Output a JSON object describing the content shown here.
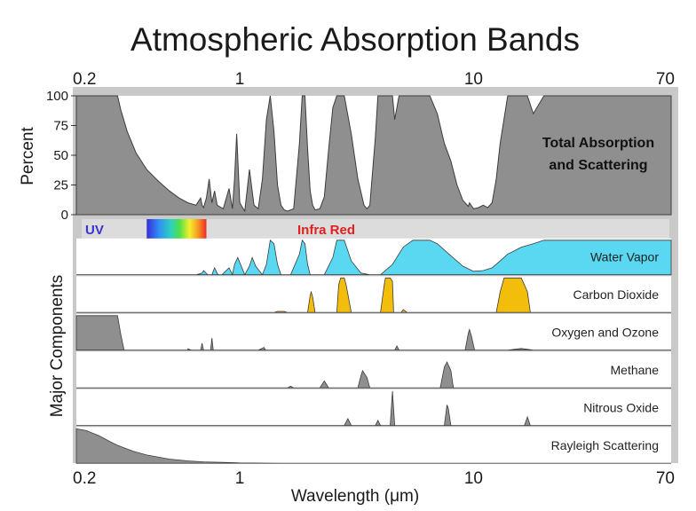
{
  "chart_data": {
    "type": "area",
    "title": "Atmospheric Absorption Bands",
    "xlabel": "Wavelength (μm)",
    "ylabel": "Percent",
    "ylabel_components": "Major Components",
    "x_scale": "log",
    "xlim": [
      0.2,
      70
    ],
    "x_ticks": [
      "0.2",
      "1",
      "10",
      "70"
    ],
    "x_tick_values": [
      0.2,
      1,
      10,
      70
    ],
    "ylim": [
      0,
      100
    ],
    "y_ticks": [
      "0",
      "25",
      "50",
      "75",
      "100"
    ],
    "y_tick_values": [
      0,
      25,
      50,
      75,
      100
    ],
    "spectrum_labels": {
      "uv": "UV",
      "ir": "Infra Red"
    },
    "colors": {
      "gray_fill": "#8f8f8f",
      "gray_stroke": "#3c3c3c",
      "water_vapor": "#5ad8f2",
      "carbon_dioxide": "#f2bd0b",
      "uv_text": "#3b33d6",
      "ir_text": "#e02020",
      "panel_background": "#ffffff"
    },
    "total": {
      "name": "Total Absorption and Scattering",
      "name_lines": [
        "Total Absorption",
        "and Scattering"
      ],
      "x": [
        0.2,
        0.3,
        0.31,
        0.33,
        0.36,
        0.4,
        0.45,
        0.5,
        0.55,
        0.6,
        0.65,
        0.68,
        0.69,
        0.7,
        0.72,
        0.74,
        0.76,
        0.78,
        0.8,
        0.85,
        0.9,
        0.93,
        0.95,
        0.97,
        1.0,
        1.05,
        1.1,
        1.15,
        1.2,
        1.25,
        1.3,
        1.35,
        1.4,
        1.45,
        1.5,
        1.55,
        1.6,
        1.7,
        1.8,
        1.85,
        1.9,
        1.95,
        2.0,
        2.05,
        2.1,
        2.2,
        2.3,
        2.4,
        2.5,
        2.6,
        2.7,
        2.8,
        3.0,
        3.2,
        3.4,
        3.5,
        3.6,
        3.8,
        3.9,
        4.0,
        4.2,
        4.3,
        4.5,
        4.6,
        4.8,
        5.0,
        5.5,
        6.0,
        6.5,
        7.0,
        7.5,
        8.0,
        8.5,
        9.0,
        9.5,
        9.6,
        10.0,
        10.5,
        11.0,
        11.5,
        12.0,
        12.5,
        13.0,
        14.0,
        15.0,
        17.0,
        18.0,
        20.0,
        22.0,
        25.0,
        30.0,
        70.0
      ],
      "y": [
        100,
        100,
        88,
        70,
        52,
        38,
        28,
        20,
        14,
        10,
        8,
        14,
        8,
        6,
        14,
        30,
        10,
        20,
        8,
        5,
        22,
        5,
        30,
        68,
        10,
        3,
        38,
        8,
        5,
        30,
        80,
        100,
        70,
        25,
        8,
        4,
        3,
        5,
        60,
        100,
        100,
        55,
        20,
        8,
        4,
        5,
        15,
        55,
        90,
        100,
        100,
        100,
        68,
        30,
        8,
        5,
        8,
        65,
        100,
        100,
        100,
        100,
        100,
        80,
        100,
        100,
        100,
        100,
        100,
        85,
        60,
        45,
        25,
        12,
        7,
        10,
        5,
        6,
        8,
        6,
        10,
        30,
        60,
        100,
        100,
        100,
        85,
        100,
        100,
        100,
        100,
        100
      ]
    },
    "components": [
      {
        "name": "Water Vapor",
        "color": "#5ad8f2",
        "x": [
          0.2,
          0.65,
          0.69,
          0.7,
          0.72,
          0.73,
          0.76,
          0.78,
          0.8,
          0.81,
          0.84,
          0.9,
          0.93,
          0.95,
          0.98,
          1.05,
          1.1,
          1.13,
          1.17,
          1.25,
          1.3,
          1.35,
          1.4,
          1.45,
          1.5,
          1.65,
          1.8,
          1.85,
          1.9,
          1.95,
          2.0,
          2.3,
          2.5,
          2.6,
          2.7,
          2.8,
          3.0,
          3.3,
          3.6,
          4.0,
          4.5,
          5.0,
          5.5,
          6.0,
          6.5,
          7.0,
          8.0,
          9.0,
          10.0,
          11.0,
          12.0,
          13.0,
          14.0,
          15.0,
          16.0,
          17.0,
          18.0,
          20.0,
          22.0,
          25.0,
          30.0,
          70.0
        ],
        "y": [
          0,
          0,
          5,
          12,
          4,
          0,
          0,
          20,
          4,
          0,
          0,
          20,
          0,
          30,
          50,
          0,
          25,
          50,
          25,
          0,
          30,
          100,
          90,
          30,
          0,
          0,
          60,
          100,
          90,
          30,
          0,
          0,
          50,
          100,
          100,
          100,
          40,
          5,
          0,
          0,
          30,
          80,
          100,
          100,
          100,
          90,
          55,
          25,
          10,
          12,
          20,
          40,
          60,
          70,
          80,
          85,
          90,
          100,
          100,
          100,
          100,
          100
        ]
      },
      {
        "name": "Carbon Dioxide",
        "color": "#f2bd0b",
        "x": [
          0.2,
          1.4,
          1.45,
          1.55,
          1.6,
          1.95,
          2.0,
          2.02,
          2.05,
          2.1,
          2.6,
          2.65,
          2.7,
          2.8,
          2.85,
          3.0,
          4.0,
          4.15,
          4.2,
          4.4,
          4.5,
          4.55,
          4.9,
          5.0,
          5.2,
          12.5,
          13.0,
          13.5,
          16.0,
          17.0,
          17.5,
          70.0
        ],
        "y": [
          0,
          0,
          3,
          3,
          0,
          0,
          50,
          60,
          45,
          0,
          0,
          80,
          100,
          100,
          80,
          0,
          0,
          80,
          100,
          100,
          90,
          0,
          0,
          8,
          0,
          0,
          60,
          100,
          100,
          60,
          0,
          0
        ]
      },
      {
        "name": "Oxygen and Ozone",
        "x": [
          0.2,
          0.27,
          0.3,
          0.31,
          0.32,
          0.6,
          0.6,
          0.62,
          0.68,
          0.69,
          0.7,
          0.75,
          0.76,
          0.77,
          1.2,
          1.27,
          1.29,
          4.6,
          4.7,
          4.8,
          9.2,
          9.5,
          9.6,
          9.8,
          10.1,
          14.0,
          16.0,
          18.0,
          70.0
        ],
        "y": [
          100,
          100,
          100,
          45,
          0,
          0,
          4,
          0,
          0,
          20,
          0,
          0,
          35,
          0,
          0,
          8,
          0,
          0,
          12,
          0,
          0,
          50,
          60,
          40,
          0,
          0,
          5,
          0,
          0
        ]
      },
      {
        "name": "Methane",
        "x": [
          0.2,
          1.6,
          1.65,
          1.7,
          2.2,
          2.3,
          2.4,
          3.2,
          3.3,
          3.35,
          3.5,
          3.6,
          7.2,
          7.5,
          7.7,
          8.0,
          8.2,
          70.0
        ],
        "y": [
          0,
          0,
          5,
          0,
          0,
          20,
          0,
          0,
          35,
          50,
          30,
          0,
          0,
          60,
          75,
          50,
          0,
          0
        ]
      },
      {
        "name": "Nitrous Oxide",
        "x": [
          0.2,
          2.8,
          2.9,
          3.0,
          3.8,
          3.9,
          4.0,
          4.4,
          4.5,
          4.6,
          7.5,
          7.7,
          7.8,
          8.0,
          16.5,
          17.0,
          17.5,
          70.0
        ],
        "y": [
          0,
          0,
          20,
          0,
          0,
          15,
          0,
          0,
          100,
          0,
          0,
          60,
          50,
          0,
          0,
          25,
          0,
          0
        ]
      },
      {
        "name": "Rayleigh Scattering",
        "x": [
          0.2,
          0.22,
          0.25,
          0.28,
          0.3,
          0.35,
          0.4,
          0.5,
          0.6,
          0.7,
          0.8,
          1.0,
          1.5,
          70.0
        ],
        "y": [
          100,
          95,
          80,
          62,
          52,
          35,
          24,
          12,
          7,
          4,
          3,
          1,
          0,
          0
        ]
      }
    ]
  }
}
